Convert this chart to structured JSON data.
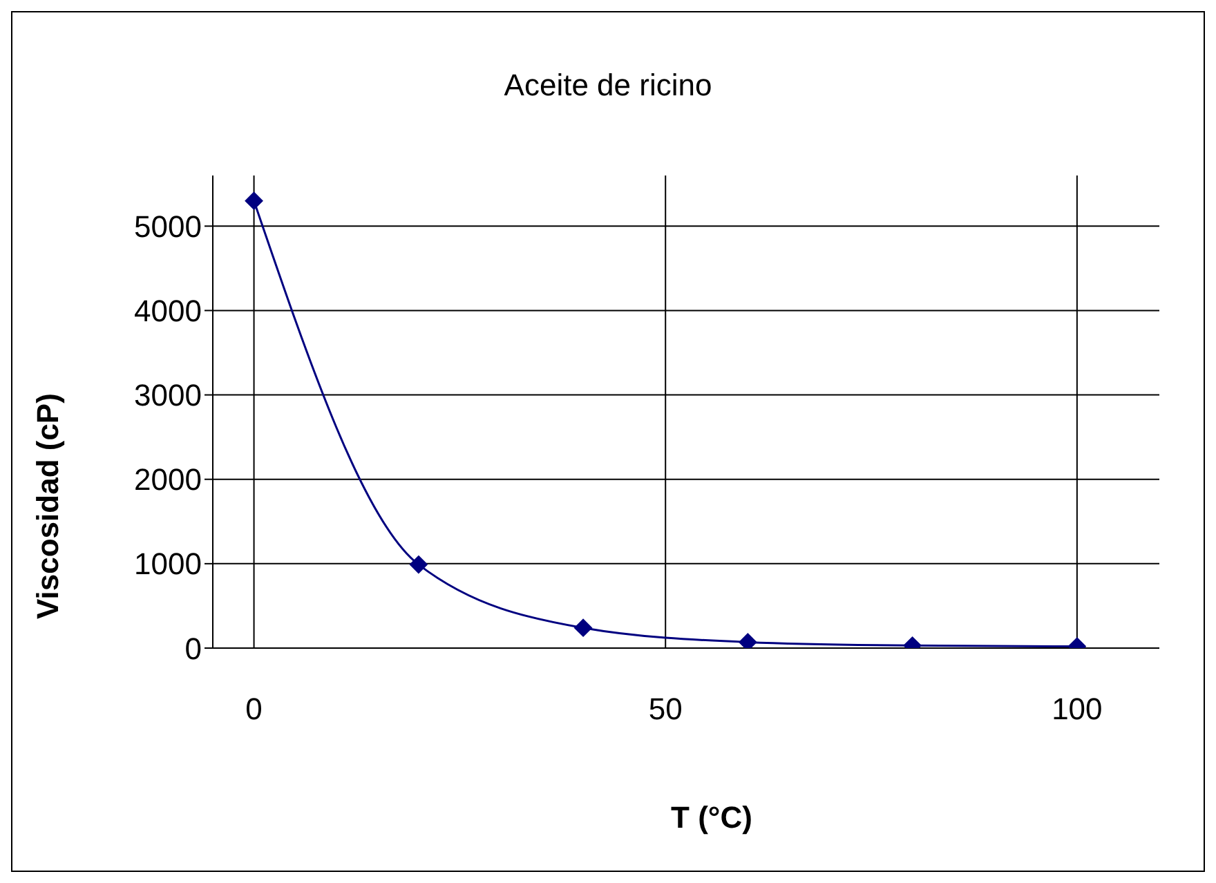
{
  "chart_data": {
    "type": "line",
    "title": "Aceite de ricino",
    "xlabel": "T (°C)",
    "ylabel": "Viscosidad (cP)",
    "x": [
      0,
      20,
      40,
      60,
      80,
      100
    ],
    "series": [
      {
        "color": "#000080",
        "values": [
          5300,
          990,
          240,
          70,
          30,
          20
        ]
      }
    ],
    "xlim": [
      -5,
      110
    ],
    "xticks": [
      0,
      50,
      100
    ],
    "ylim": [
      0,
      5600
    ],
    "yticks": [
      0,
      1000,
      2000,
      3000,
      4000,
      5000
    ],
    "grid": true,
    "marker": "diamond",
    "line_style": "solid",
    "legend": false
  }
}
